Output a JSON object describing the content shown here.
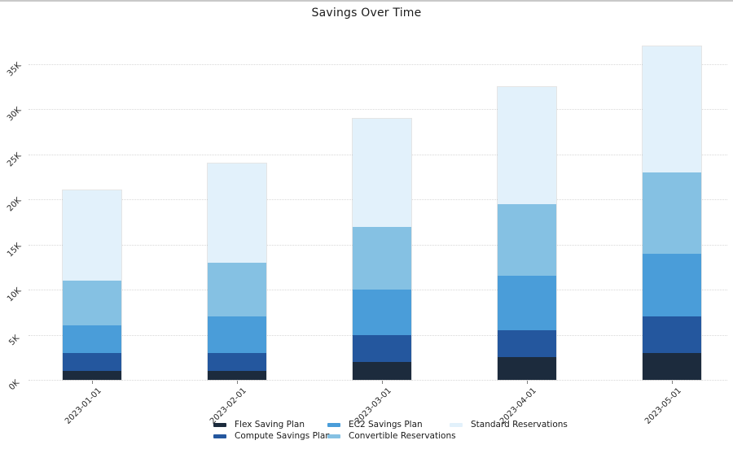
{
  "page": {
    "title": "Savings Over Time"
  },
  "chart_data": {
    "type": "bar",
    "stacked": true,
    "title": "Savings Over Time",
    "categories": [
      "2023-01-01",
      "2023-02-01",
      "2023-03-01",
      "2023-04-01",
      "2023-05-01"
    ],
    "series": [
      {
        "name": "Flex Saving Plan",
        "color": "#1c2b3d",
        "values": [
          1000,
          1000,
          2000,
          2500,
          3000
        ]
      },
      {
        "name": "Compute Savings Plan",
        "color": "#24579e",
        "values": [
          2000,
          2000,
          3000,
          3000,
          4000
        ]
      },
      {
        "name": "EC2 Savings Plan",
        "color": "#4a9dd9",
        "values": [
          3000,
          4000,
          5000,
          6000,
          7000
        ]
      },
      {
        "name": "Convertible Reservations",
        "color": "#85c1e3",
        "values": [
          5000,
          6000,
          7000,
          8000,
          9000
        ]
      },
      {
        "name": "Standard Reservations",
        "color": "#e2f1fb",
        "values": [
          10000,
          11000,
          12000,
          13000,
          14000
        ]
      }
    ],
    "xlabel": "",
    "ylabel": "",
    "y_ticks": [
      "0K",
      "5K",
      "10K",
      "15K",
      "20K",
      "25K",
      "30K",
      "35K"
    ],
    "y_tick_values": [
      0,
      5000,
      10000,
      15000,
      20000,
      25000,
      30000,
      35000
    ],
    "ylim": [
      0,
      38000
    ],
    "grid": true,
    "legend_position": "bottom"
  },
  "colors": {
    "background": "#ffffff",
    "gridline": "#d8d8d8",
    "tick_text": "#262626",
    "top_edge": "#c9c9c9"
  }
}
